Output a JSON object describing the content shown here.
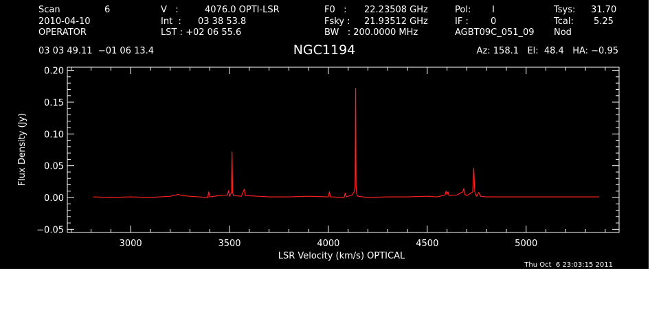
{
  "header": {
    "row1": [
      {
        "key": "scan_label",
        "text": "Scan"
      },
      {
        "key": "scan_value",
        "text": "6"
      },
      {
        "key": "v_label",
        "text": "V   :"
      },
      {
        "key": "v_value",
        "text": "4076.0 OPTI-LSR"
      },
      {
        "key": "f0_label",
        "text": "F0   :"
      },
      {
        "key": "f0_value",
        "text": "22.23508 GHz"
      },
      {
        "key": "pol_label",
        "text": "Pol:"
      },
      {
        "key": "pol_value",
        "text": "I"
      },
      {
        "key": "tsys_label",
        "text": "Tsys:"
      },
      {
        "key": "tsys_value",
        "text": "31.70"
      }
    ],
    "row2": [
      {
        "key": "date",
        "text": "2010-04-10"
      },
      {
        "key": "int_label",
        "text": "Int  :"
      },
      {
        "key": "int_value",
        "text": "03 38 53.8"
      },
      {
        "key": "fsky_label",
        "text": "Fsky :"
      },
      {
        "key": "fsky_value",
        "text": "21.93512 GHz"
      },
      {
        "key": "if_label",
        "text": "IF :"
      },
      {
        "key": "if_value",
        "text": "0"
      },
      {
        "key": "tcal_label",
        "text": "Tcal:"
      },
      {
        "key": "tcal_value",
        "text": "5.25"
      }
    ],
    "row3": [
      {
        "key": "operator",
        "text": "OPERATOR"
      },
      {
        "key": "lst_label",
        "text": "LST : +02 06 55.6"
      },
      {
        "key": "bw_label",
        "text": "BW   : 200.0000 MHz"
      },
      {
        "key": "project",
        "text": "AGBT09C_051_09"
      },
      {
        "key": "proc",
        "text": "Nod"
      }
    ],
    "coords": "03 03 49.11  −01 06 13.4",
    "az_el_ha": "Az: 158.1   El:  48.4   HA: −0.95"
  },
  "chart_data": {
    "type": "line",
    "title": "NGC1194",
    "xlabel": "LSR Velocity (km/s) OPTICAL",
    "ylabel": "Flux Density (Jy)",
    "xlim": [
      2680,
      5470
    ],
    "ylim": [
      -0.055,
      0.205
    ],
    "x_ticks": [
      3000,
      3500,
      4000,
      4500,
      5000
    ],
    "y_ticks": [
      -0.05,
      0.0,
      0.05,
      0.1,
      0.15,
      0.2
    ],
    "x_tick_labels": [
      "3000",
      "3500",
      "4000",
      "4500",
      "5000"
    ],
    "y_tick_labels": [
      "−0.05",
      "0.00",
      "0.05",
      "0.10",
      "0.15",
      "0.20"
    ],
    "grid": false,
    "background_color": "#000000",
    "axis_color": "#ffffff",
    "series": [
      {
        "color": "#ff2020",
        "x": [
          2810,
          2900,
          3000,
          3100,
          3200,
          3230,
          3240,
          3260,
          3300,
          3390,
          3395,
          3400,
          3450,
          3490,
          3495,
          3500,
          3510,
          3513,
          3516,
          3520,
          3560,
          3570,
          3575,
          3580,
          3700,
          3800,
          3900,
          4000,
          4005,
          4010,
          4080,
          4085,
          4090,
          4120,
          4130,
          4135,
          4138,
          4140,
          4142,
          4145,
          4150,
          4200,
          4300,
          4400,
          4500,
          4550,
          4590,
          4595,
          4600,
          4605,
          4610,
          4650,
          4680,
          4685,
          4690,
          4700,
          4730,
          4735,
          4740,
          4745,
          4750,
          4760,
          4765,
          4770,
          4800,
          4900,
          5000,
          5100,
          5200,
          5300,
          5370
        ],
        "y": [
          0.001,
          0.0,
          0.001,
          0.0,
          0.002,
          0.004,
          0.005,
          0.003,
          0.002,
          0.0,
          0.009,
          0.001,
          0.003,
          0.004,
          0.011,
          0.002,
          0.008,
          0.072,
          0.008,
          0.003,
          0.002,
          0.01,
          0.013,
          0.003,
          0.001,
          0.001,
          0.002,
          0.001,
          0.009,
          0.001,
          0.0,
          0.007,
          0.001,
          0.004,
          0.009,
          0.018,
          0.172,
          0.02,
          0.008,
          0.004,
          0.002,
          0.0,
          0.001,
          0.001,
          0.002,
          0.001,
          0.004,
          0.01,
          0.005,
          0.009,
          0.003,
          0.004,
          0.009,
          0.014,
          0.005,
          0.003,
          0.009,
          0.046,
          0.01,
          0.004,
          0.002,
          0.008,
          0.005,
          0.002,
          0.001,
          0.001,
          0.001,
          0.001,
          0.001,
          0.001,
          0.001
        ]
      }
    ]
  },
  "timestamp": "Thu Oct  6 23:03:15 2011"
}
